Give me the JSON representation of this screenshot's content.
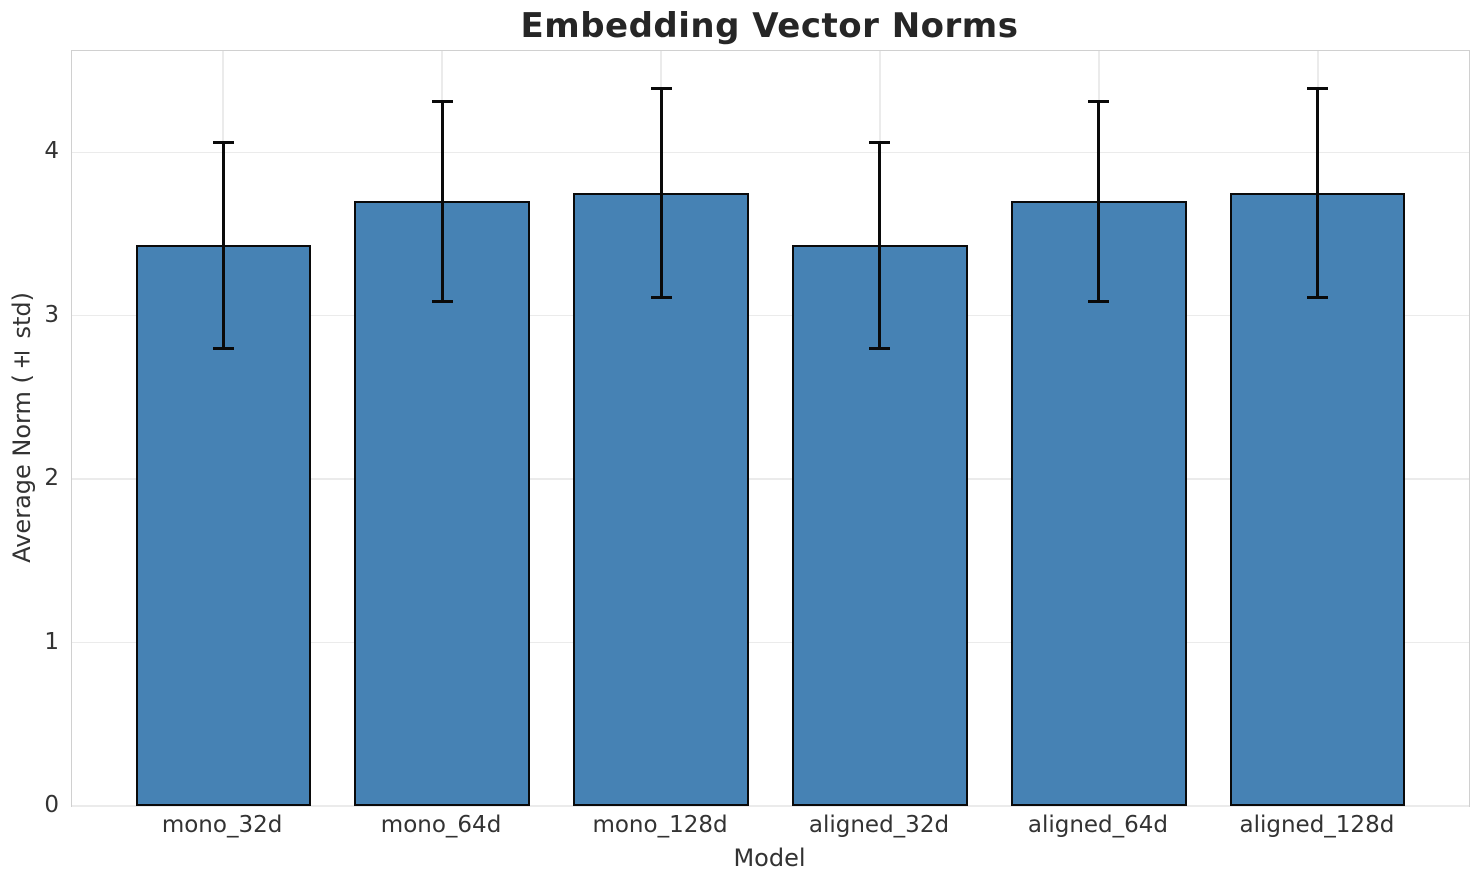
{
  "chart_data": {
    "type": "bar",
    "title": "Embedding Vector Norms",
    "xlabel": "Model",
    "ylabel": "Average Norm (± std)",
    "categories": [
      "mono_32d",
      "mono_64d",
      "mono_128d",
      "aligned_32d",
      "aligned_64d",
      "aligned_128d"
    ],
    "series": [
      {
        "name": "Average Norm",
        "values": [
          3.43,
          3.7,
          3.75,
          3.43,
          3.7,
          3.75
        ],
        "errors": [
          0.63,
          0.61,
          0.64,
          0.63,
          0.61,
          0.64
        ]
      }
    ],
    "yticks": [
      "0",
      "1",
      "2",
      "3",
      "4"
    ],
    "ytick_values": [
      0,
      1,
      2,
      3,
      4
    ],
    "ylim": [
      0,
      4.62
    ],
    "grid": true,
    "legend": false,
    "error_caps": true,
    "colors": {
      "bar_fill": "#4682B4",
      "bar_edge": "#0a0a0a",
      "error_bar": "#0a0a0a",
      "gridline": "#ebebeb",
      "spine": "#d0d0d0",
      "text": "#333333",
      "title_text": "#262626",
      "background": "#ffffff"
    }
  }
}
